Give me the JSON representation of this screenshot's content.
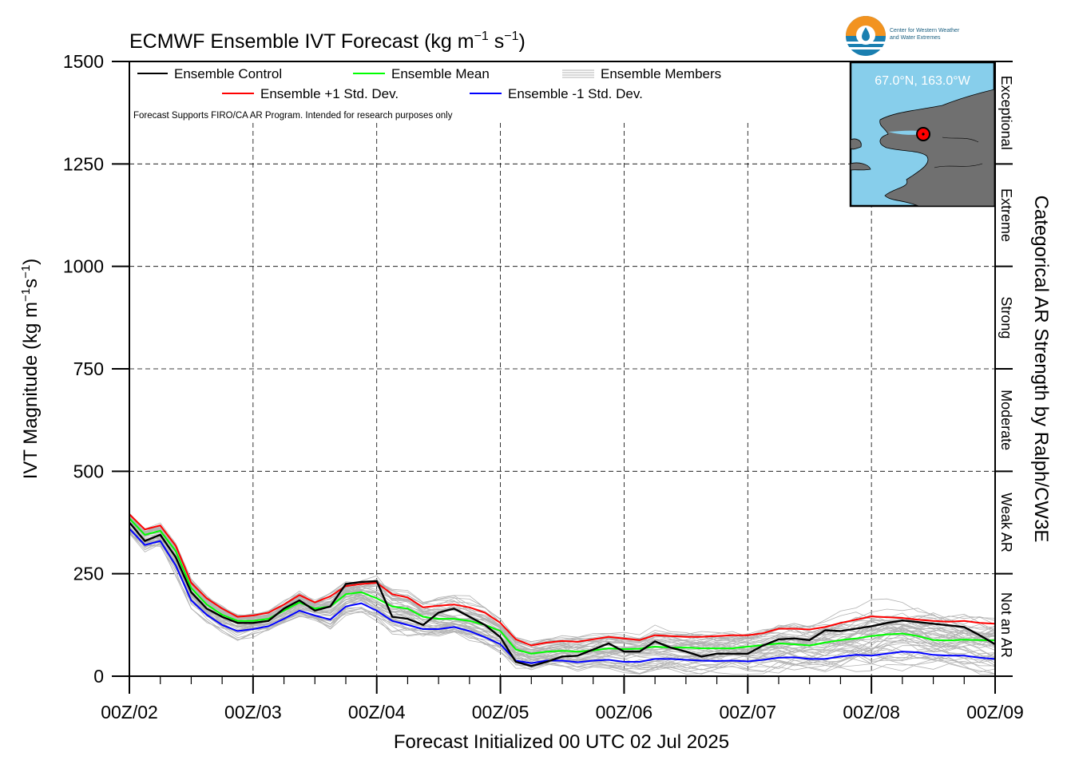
{
  "chart_data": {
    "type": "line",
    "title": "ECMWF Ensemble IVT Forecast (kg m⁻¹ s⁻¹)",
    "title_main": "ECMWF Ensemble IVT Forecast (kg m",
    "title_exp1": "−1",
    "title_mid": " s",
    "title_exp2": "−1",
    "title_end": ")",
    "ylabel_main": "IVT Magnitude (kg m",
    "ylabel_exp1": "−1",
    "ylabel_mid": "s",
    "ylabel_exp2": "−1",
    "ylabel_end": ")",
    "xlabel": "Forecast Initialized 00 UTC 02 Jul 2025",
    "right_label": "Categorical AR Strength by Ralph/CW3E",
    "ylim": [
      0,
      1500
    ],
    "yticks": [
      0,
      250,
      500,
      750,
      1000,
      1250,
      1500
    ],
    "ytick_labels": [
      "0",
      "250",
      "500",
      "750",
      "1000",
      "1250",
      "1500"
    ],
    "xlim": [
      0,
      168
    ],
    "xticks": [
      0,
      24,
      48,
      72,
      96,
      120,
      144,
      168
    ],
    "xtick_labels": [
      "00Z/02",
      "00Z/03",
      "00Z/04",
      "00Z/05",
      "00Z/06",
      "00Z/07",
      "00Z/08",
      "00Z/09"
    ],
    "grid": true,
    "legend_position": "top-left",
    "legend": {
      "control": "Ensemble Control",
      "mean": "Ensemble Mean",
      "members": "Ensemble Members",
      "plus_sd": "Ensemble +1 Std. Dev.",
      "minus_sd": "Ensemble -1 Std. Dev."
    },
    "disclaimer": "Forecast Supports FIRO/CA AR Program. Intended for research purposes only",
    "categories": [
      {
        "label": "Not an AR",
        "range": [
          0,
          250
        ]
      },
      {
        "label": "Weak AR",
        "range": [
          250,
          500
        ]
      },
      {
        "label": "Moderate",
        "range": [
          500,
          750
        ]
      },
      {
        "label": "Strong",
        "range": [
          750,
          1000
        ]
      },
      {
        "label": "Extreme",
        "range": [
          1000,
          1250
        ]
      },
      {
        "label": "Exceptional",
        "range": [
          1250,
          1500
        ]
      }
    ],
    "colors": {
      "control": "#000000",
      "mean": "#00ff00",
      "plus_sd": "#ff0000",
      "minus_sd": "#0000ff",
      "members": "#b3b3b3",
      "inset_ocean": "#87ceeb",
      "inset_land": "#707070",
      "marker": "#ff0000"
    },
    "x": [
      0,
      3,
      6,
      9,
      12,
      15,
      18,
      21,
      24,
      27,
      30,
      33,
      36,
      39,
      42,
      45,
      48,
      51,
      54,
      57,
      60,
      63,
      66,
      69,
      72,
      75,
      78,
      81,
      84,
      87,
      90,
      93,
      96,
      99,
      102,
      105,
      108,
      111,
      114,
      117,
      120,
      123,
      126,
      129,
      132,
      135,
      138,
      141,
      144,
      147,
      150,
      153,
      156,
      159,
      162,
      165,
      168
    ],
    "series": [
      {
        "key": "control",
        "values": [
          375,
          330,
          345,
          290,
          205,
          165,
          145,
          130,
          130,
          135,
          165,
          185,
          160,
          170,
          225,
          230,
          232,
          145,
          140,
          125,
          155,
          165,
          145,
          125,
          95,
          35,
          25,
          35,
          48,
          50,
          65,
          80,
          60,
          60,
          85,
          70,
          60,
          48,
          55,
          55,
          55,
          75,
          90,
          92,
          88,
          112,
          110,
          116,
          122,
          130,
          136,
          132,
          128,
          124,
          120,
          100,
          78
        ]
      },
      {
        "key": "mean",
        "values": [
          385,
          345,
          355,
          305,
          215,
          175,
          150,
          135,
          135,
          140,
          160,
          180,
          165,
          170,
          200,
          205,
          190,
          170,
          165,
          145,
          140,
          140,
          135,
          125,
          110,
          65,
          55,
          60,
          62,
          60,
          63,
          68,
          66,
          67,
          72,
          70,
          70,
          68,
          68,
          68,
          72,
          76,
          80,
          78,
          75,
          82,
          88,
          92,
          98,
          102,
          104,
          98,
          88,
          87,
          89,
          88,
          87
        ]
      },
      {
        "key": "plus_sd",
        "values": [
          395,
          358,
          368,
          318,
          228,
          190,
          165,
          145,
          148,
          155,
          175,
          198,
          180,
          195,
          220,
          225,
          228,
          200,
          192,
          168,
          172,
          175,
          168,
          155,
          130,
          90,
          75,
          82,
          86,
          84,
          90,
          96,
          92,
          88,
          100,
          98,
          96,
          96,
          98,
          100,
          100,
          105,
          116,
          116,
          114,
          120,
          130,
          138,
          146,
          144,
          142,
          138,
          135,
          133,
          135,
          130,
          128
        ]
      },
      {
        "key": "minus_sd",
        "values": [
          360,
          320,
          330,
          270,
          185,
          150,
          125,
          110,
          115,
          122,
          140,
          160,
          148,
          138,
          170,
          178,
          160,
          135,
          125,
          115,
          115,
          120,
          110,
          95,
          78,
          38,
          32,
          38,
          38,
          34,
          38,
          40,
          35,
          35,
          42,
          42,
          40,
          38,
          37,
          38,
          36,
          40,
          45,
          46,
          42,
          42,
          48,
          52,
          50,
          55,
          60,
          58,
          52,
          50,
          50,
          45,
          42
        ]
      }
    ],
    "inset_label": "67.0°N, 163.0°W",
    "logo_line1": "Center for Western Weather",
    "logo_line2": "and Water Extremes"
  }
}
